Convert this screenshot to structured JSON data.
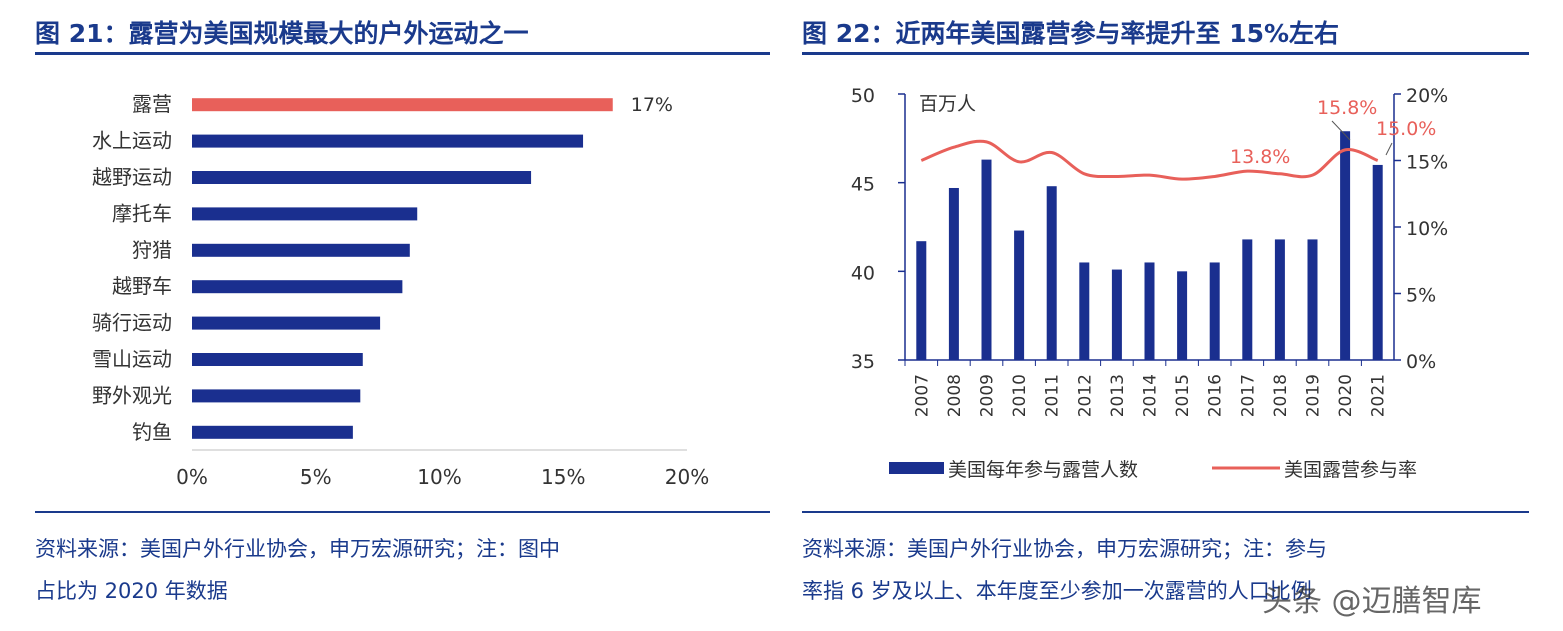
{
  "left": {
    "figure_title": "图 21：露营为美国规模最大的户外运动之一",
    "source_line1": "资料来源：美国户外行业协会，申万宏源研究；注：图中",
    "source_line2": "占比为 2020 年数据"
  },
  "right": {
    "figure_title": "图 22：近两年美国露营参与率提升至 15%左右",
    "source_line1": "资料来源：美国户外行业协会，申万宏源研究；注：参与",
    "source_line2": "率指 6 岁及以上、本年度至少参加一次露营的人口比例"
  },
  "watermark": "头条 @迈膳智库",
  "chart_data": [
    {
      "type": "bar",
      "orientation": "horizontal",
      "categories": [
        "露营",
        "水上运动",
        "越野运动",
        "摩托车",
        "狩猎",
        "越野车",
        "骑行运动",
        "雪山运动",
        "野外观光",
        "钓鱼"
      ],
      "values": [
        17,
        15.8,
        13.7,
        9.1,
        8.8,
        8.5,
        7.6,
        6.9,
        6.8,
        6.5
      ],
      "highlight_index": 0,
      "highlight_label": "17%",
      "xlim": [
        0,
        20
      ],
      "xticks": [
        "0%",
        "5%",
        "10%",
        "15%",
        "20%"
      ],
      "colors": {
        "bar": "#1a2f8f",
        "highlight": "#e8605a"
      }
    },
    {
      "type": "bar+line",
      "categories": [
        "2007",
        "2008",
        "2009",
        "2010",
        "2011",
        "2012",
        "2013",
        "2014",
        "2015",
        "2016",
        "2017",
        "2018",
        "2019",
        "2020",
        "2021"
      ],
      "y_unit_label": "百万人",
      "ylim_left": [
        35,
        50
      ],
      "yticks_left": [
        "35",
        "40",
        "45",
        "50"
      ],
      "ylim_right": [
        0,
        20
      ],
      "yticks_right": [
        "0%",
        "5%",
        "10%",
        "15%",
        "20%"
      ],
      "series": [
        {
          "name": "美国每年参与露营人数",
          "type": "bar",
          "axis": "left",
          "values": [
            41.7,
            44.7,
            46.3,
            42.3,
            44.8,
            40.5,
            40.1,
            40.5,
            40.0,
            40.5,
            41.8,
            41.8,
            41.8,
            47.9,
            46.0
          ]
        },
        {
          "name": "美国露营参与率",
          "type": "line",
          "axis": "right",
          "values": [
            15.0,
            16.0,
            16.4,
            14.9,
            15.6,
            14.0,
            13.8,
            13.9,
            13.6,
            13.8,
            14.2,
            14.0,
            13.9,
            15.8,
            15.0
          ]
        }
      ],
      "annotations": [
        "13.8%",
        "15.8%",
        "15.0%"
      ],
      "colors": {
        "bar": "#1a2f8f",
        "line": "#e8605a",
        "axis": "#1a2f8f"
      }
    }
  ]
}
